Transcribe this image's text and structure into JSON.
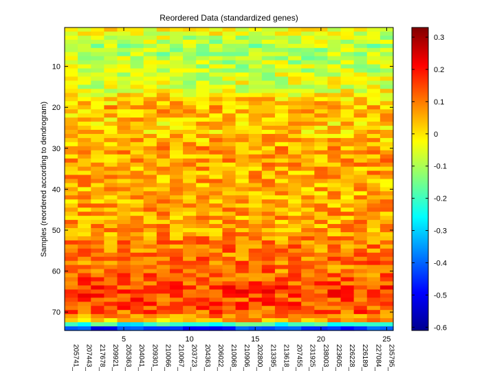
{
  "chart_data": {
    "type": "heatmap",
    "title": "Reordered Data (standardized genes)",
    "ylabel": "Samples (reordered according to dendrogram)",
    "xlabel": "",
    "n_rows": 74,
    "n_cols": 25,
    "x_ticks": [
      5,
      10,
      15,
      20,
      25
    ],
    "y_ticks": [
      10,
      20,
      30,
      40,
      50,
      60,
      70
    ],
    "gene_labels": [
      "205741_",
      "207443_",
      "217678_",
      "209921_",
      "205363_",
      "204041_",
      "209301_",
      "210066_",
      "210067_",
      "203723_",
      "204363_",
      "206022_",
      "210068_",
      "210906_",
      "202800_",
      "213395_",
      "213618_",
      "207455_",
      "231925_",
      "238003_",
      "223605_",
      "226228_",
      "226189_",
      "227084_",
      "235795_"
    ],
    "colorbar": {
      "vmin": -0.61,
      "vmax": 0.33,
      "ticks": [
        0.3,
        0.2,
        0.1,
        0,
        -0.1,
        -0.2,
        -0.3,
        -0.4,
        -0.5,
        -0.6
      ],
      "colormap": "jet"
    },
    "row_profile": [
      {
        "row": 1,
        "value": -0.03
      },
      {
        "row": 5,
        "value": -0.1
      },
      {
        "row": 10,
        "value": -0.08
      },
      {
        "row": 15,
        "value": -0.05
      },
      {
        "row": 20,
        "value": 0.05
      },
      {
        "row": 25,
        "value": 0.01
      },
      {
        "row": 30,
        "value": 0.07
      },
      {
        "row": 40,
        "value": 0.05
      },
      {
        "row": 50,
        "value": 0.07
      },
      {
        "row": 55,
        "value": 0.1
      },
      {
        "row": 60,
        "value": 0.11
      },
      {
        "row": 65,
        "value": 0.16
      },
      {
        "row": 70,
        "value": 0.13
      },
      {
        "row": 72,
        "value": 0.05
      },
      {
        "row": 73,
        "value": -0.22
      },
      {
        "row": 74,
        "value": -0.45
      }
    ]
  }
}
